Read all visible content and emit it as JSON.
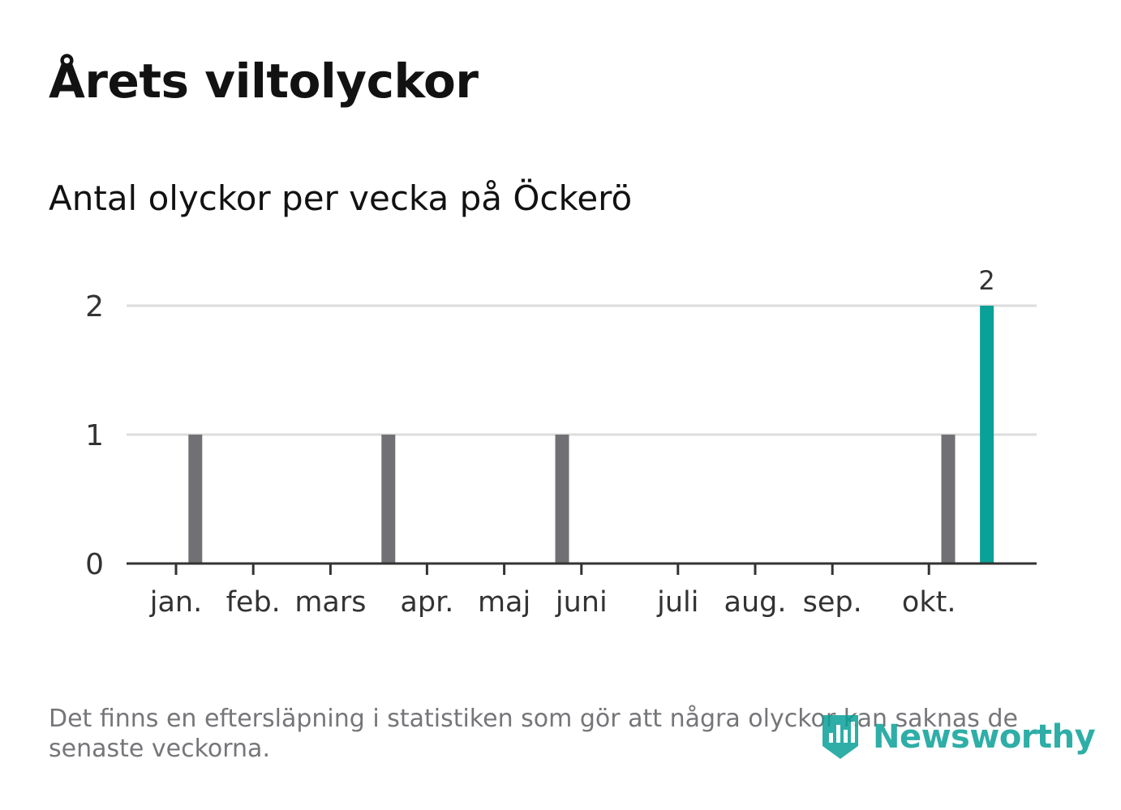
{
  "title": "Årets viltolyckor",
  "subtitle": "Antal olyckor per vecka på Öckerö",
  "footnote": "Det finns en eftersläpning i statistiken som gör att några olyckor kan saknas de senaste veckorna.",
  "brand": {
    "name": "Newsworthy",
    "icon": "newsworthy-logo-icon",
    "color": "#0aa198"
  },
  "chart_data": {
    "type": "bar",
    "title": "Antal olyckor per vecka på Öckerö",
    "xlabel": "",
    "ylabel": "",
    "ylim": [
      0,
      2
    ],
    "yticks": [
      0,
      1,
      2
    ],
    "grid": true,
    "x_unit": "week",
    "x_range": [
      0,
      44
    ],
    "month_ticks": [
      {
        "label": "jan.",
        "week": 2
      },
      {
        "label": "feb.",
        "week": 6
      },
      {
        "label": "mars",
        "week": 10
      },
      {
        "label": "apr.",
        "week": 15
      },
      {
        "label": "maj",
        "week": 19
      },
      {
        "label": "juni",
        "week": 23
      },
      {
        "label": "juli",
        "week": 28
      },
      {
        "label": "aug.",
        "week": 32
      },
      {
        "label": "sep.",
        "week": 36
      },
      {
        "label": "okt.",
        "week": 41
      }
    ],
    "bars": [
      {
        "week": 3,
        "value": 1,
        "highlight": false
      },
      {
        "week": 13,
        "value": 1,
        "highlight": false
      },
      {
        "week": 22,
        "value": 1,
        "highlight": false
      },
      {
        "week": 42,
        "value": 1,
        "highlight": false
      },
      {
        "week": 44,
        "value": 2,
        "highlight": true,
        "label": "2"
      }
    ],
    "colors": {
      "bar": "#717175",
      "highlight": "#0aa198",
      "grid": "#dddddd",
      "axis": "#333333"
    }
  }
}
